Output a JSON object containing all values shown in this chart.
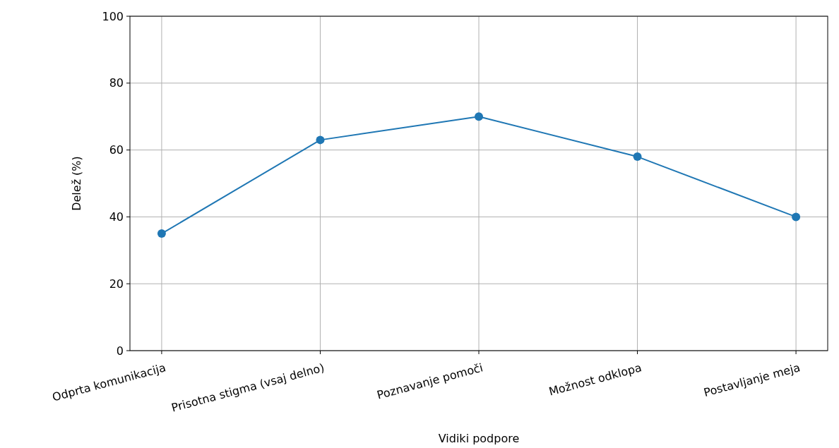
{
  "chart_data": {
    "type": "line",
    "xlabel": "Vidiki podpore",
    "ylabel": "Delež (%)",
    "categories": [
      "Odprta komunikacija",
      "Prisotna stigma (vsaj delno)",
      "Poznavanje pomoči",
      "Možnost odklopa",
      "Postavljanje meja"
    ],
    "series": [
      {
        "color": "#1f77b4",
        "values": [
          35,
          63,
          70,
          58,
          40
        ]
      }
    ],
    "ylim": [
      0,
      100
    ],
    "yticks": [
      0,
      20,
      40,
      60,
      80,
      100
    ],
    "grid": true,
    "marker": "circle",
    "line_style": "solid"
  }
}
